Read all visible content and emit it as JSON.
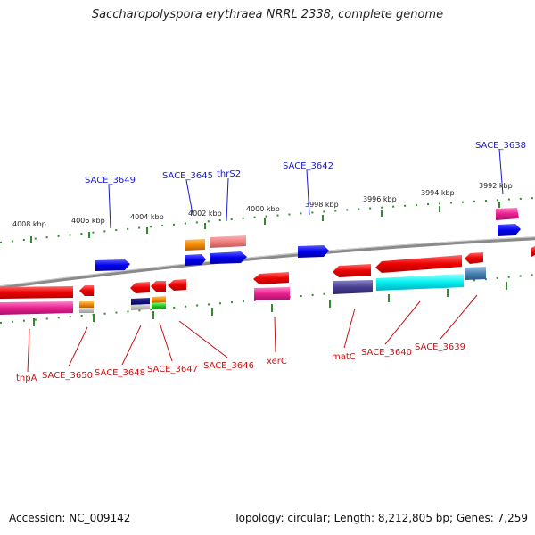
{
  "title": "Saccharopolyspora erythraea NRRL 2338, complete genome",
  "footer": {
    "accession": "Accession: NC_009142",
    "topology": "Topology: circular; Length: 8,212,805 bp; Genes: 7,259"
  },
  "colors": {
    "backbone": "#888888",
    "tick": "#2e8b2e",
    "upper_label": "#1a1acc",
    "lower_label": "#cc1111"
  },
  "kbp_labels": [
    "4008 kbp",
    "4006 kbp",
    "4004 kbp",
    "4002 kbp",
    "4000 kbp",
    "3998 kbp",
    "3996 kbp",
    "3994 kbp",
    "3992 kbp"
  ],
  "upper_labels": [
    "SACE_3649",
    "SACE_3645",
    "thrS2",
    "SACE_3642",
    "SACE_3638"
  ],
  "lower_labels": [
    "tnpA",
    "SACE_3650",
    "SACE_3648",
    "SACE_3647",
    "SACE_3646",
    "xerC",
    "matC",
    "SACE_3640",
    "SACE_3639"
  ]
}
